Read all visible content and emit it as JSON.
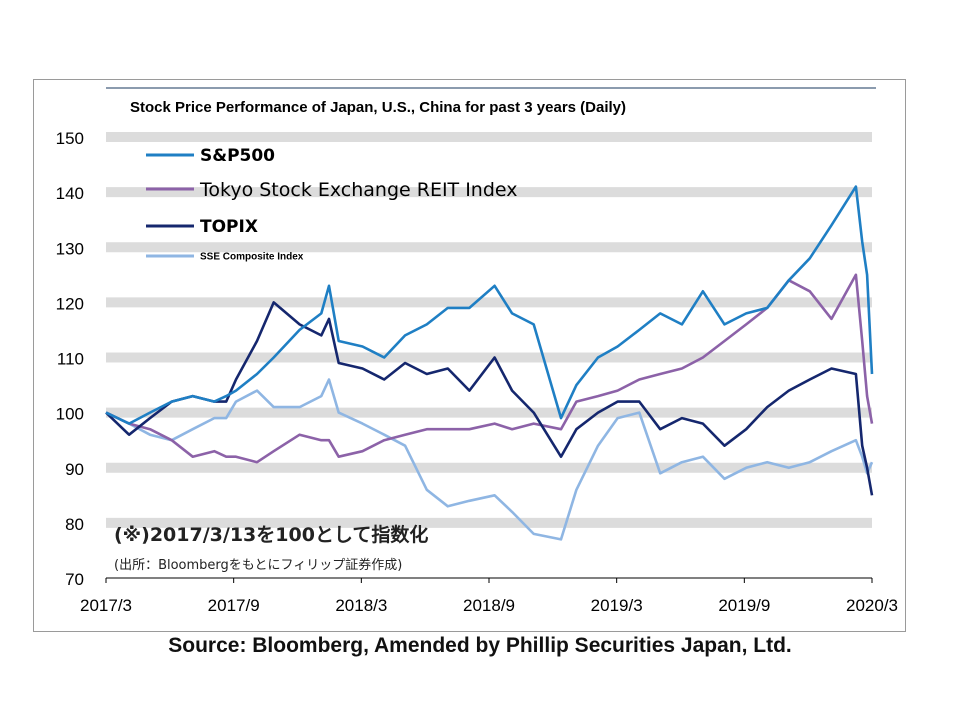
{
  "chart_data": {
    "type": "line",
    "title": "Stock Price Performance of Japan, U.S., China for past 3 years (Daily)",
    "xlabel": "",
    "ylabel": "",
    "x_ticks": [
      "2017/3",
      "2017/9",
      "2018/3",
      "2018/9",
      "2019/3",
      "2019/9",
      "2020/3"
    ],
    "x_range": [
      "2017-03-13",
      "2020-03-13"
    ],
    "ylim": [
      70,
      150
    ],
    "y_ticks": [
      70,
      80,
      90,
      100,
      110,
      120,
      130,
      140,
      150
    ],
    "grid": "horizontal-bands",
    "legend_position": "top-left",
    "annotation_main": "(※)2017/3/13を100として指数化",
    "annotation_sub": "(出所：Bloombergをもとにフィリップ証券作成)",
    "x": [
      "2017-03-13",
      "2017-04-15",
      "2017-05-15",
      "2017-06-15",
      "2017-07-15",
      "2017-08-15",
      "2017-09-01",
      "2017-09-15",
      "2017-10-15",
      "2017-11-08",
      "2017-12-15",
      "2018-01-15",
      "2018-01-26",
      "2018-02-09",
      "2018-03-15",
      "2018-04-15",
      "2018-05-15",
      "2018-06-15",
      "2018-07-15",
      "2018-08-15",
      "2018-09-20",
      "2018-10-15",
      "2018-11-15",
      "2018-12-24",
      "2019-01-15",
      "2019-02-15",
      "2019-03-15",
      "2019-04-15",
      "2019-05-15",
      "2019-06-15",
      "2019-07-15",
      "2019-08-15",
      "2019-09-15",
      "2019-10-15",
      "2019-11-15",
      "2019-12-15",
      "2020-01-15",
      "2020-02-19",
      "2020-02-28",
      "2020-03-06",
      "2020-03-13"
    ],
    "series": [
      {
        "name": "S&P500",
        "color": "#1f7fc4",
        "values": [
          100,
          98,
          100,
          102,
          103,
          102,
          103,
          104,
          107,
          110,
          115,
          118,
          123,
          113,
          112,
          110,
          114,
          116,
          119,
          119,
          123,
          118,
          116,
          99,
          105,
          110,
          112,
          115,
          118,
          116,
          122,
          116,
          118,
          119,
          124,
          128,
          134,
          141,
          131,
          125,
          107
        ]
      },
      {
        "name": "Tokyo Stock Exchange REIT Index",
        "color": "#8c62a8",
        "values": [
          100,
          98,
          97,
          95,
          92,
          93,
          92,
          92,
          91,
          93,
          96,
          95,
          95,
          92,
          93,
          95,
          96,
          97,
          97,
          97,
          98,
          97,
          98,
          97,
          102,
          103,
          104,
          106,
          107,
          108,
          110,
          113,
          116,
          119,
          124,
          122,
          117,
          125,
          113,
          103,
          98
        ]
      },
      {
        "name": "TOPIX",
        "color": "#15276e",
        "values": [
          100,
          96,
          99,
          102,
          103,
          102,
          102,
          106,
          113,
          120,
          116,
          114,
          117,
          109,
          108,
          106,
          109,
          107,
          108,
          104,
          110,
          104,
          100,
          92,
          97,
          100,
          102,
          102,
          97,
          99,
          98,
          94,
          97,
          101,
          104,
          106,
          108,
          107,
          94,
          90,
          85
        ]
      },
      {
        "name": "SSE Composite Index",
        "color": "#8fb6e3",
        "values": [
          100,
          98,
          96,
          95,
          97,
          99,
          99,
          102,
          104,
          101,
          101,
          103,
          106,
          100,
          98,
          96,
          94,
          86,
          83,
          84,
          85,
          82,
          78,
          77,
          86,
          94,
          99,
          100,
          89,
          91,
          92,
          88,
          90,
          91,
          90,
          91,
          93,
          95,
          92,
          89,
          91
        ]
      }
    ]
  },
  "source_text": "Source: Bloomberg, Amended by Phillip Securities Japan, Ltd."
}
